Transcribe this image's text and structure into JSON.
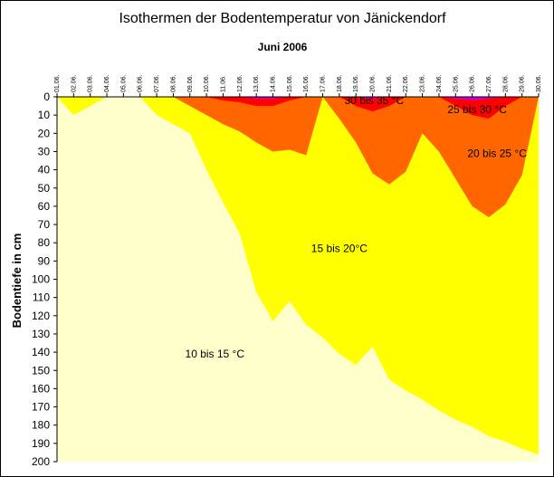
{
  "chart_data": {
    "type": "area",
    "title": "Isothermen der Bodentemperatur von Jänickendorf",
    "subtitle": "Juni 2006",
    "ylabel": "Bodentiefe in cm",
    "xlabel": "",
    "ylim": [
      0,
      200
    ],
    "y_inverted": true,
    "y_ticks": [
      0,
      10,
      20,
      30,
      40,
      50,
      60,
      70,
      80,
      90,
      100,
      110,
      120,
      130,
      140,
      150,
      160,
      170,
      180,
      190,
      200
    ],
    "x_labels": [
      "01.06.",
      "02.06.",
      "03.06.",
      "04.06.",
      "05.06.",
      "06.06.",
      "07.06.",
      "08.06.",
      "09.06.",
      "10.06.",
      "11.06.",
      "12.06.",
      "13.06.",
      "14.06.",
      "15.06.",
      "16.06.",
      "17.06.",
      "18.06.",
      "19.06.",
      "20.06.",
      "21.06.",
      "22.06.",
      "23.06.",
      "24.06.",
      "25.06.",
      "26.06.",
      "27.06.",
      "28.06.",
      "29.06.",
      "30.06."
    ],
    "x_index": [
      1,
      2,
      3,
      4,
      5,
      6,
      7,
      8,
      9,
      10,
      11,
      12,
      13,
      14,
      15,
      16,
      17,
      18,
      19,
      20,
      21,
      22,
      23,
      24,
      25,
      26,
      27,
      28,
      29,
      30
    ],
    "colors": {
      "10_15": "#ffffcc",
      "15_20": "#ffff00",
      "20_25": "#ff6600",
      "25_30": "#ff0000",
      "30_35": "#cc00cc"
    },
    "boundaries": [
      {
        "name": "15°C isotherm",
        "depth": [
          0,
          10,
          5,
          0,
          0,
          0,
          10,
          15,
          20,
          40,
          58,
          75,
          107,
          123,
          112,
          125,
          132,
          141,
          147,
          137,
          155,
          161,
          166,
          172,
          177,
          181,
          186,
          189,
          193,
          196
        ]
      },
      {
        "name": "20°C isotherm",
        "depth": [
          0,
          0,
          0,
          0,
          0,
          0,
          0,
          0,
          5,
          10,
          15,
          19,
          25,
          30,
          29,
          32,
          0,
          12,
          25,
          42,
          48,
          41,
          20,
          30,
          45,
          60,
          66,
          59,
          43,
          0
        ]
      },
      {
        "name": "25°C isotherm",
        "depth": [
          0,
          0,
          0,
          0,
          0,
          0,
          0,
          0,
          0,
          0,
          2,
          3,
          5,
          5,
          2,
          0,
          0,
          0,
          5,
          8,
          5,
          0,
          0,
          0,
          5,
          10,
          12,
          5,
          0,
          0
        ]
      },
      {
        "name": "30°C isotherm",
        "depth": [
          0,
          0,
          0,
          0,
          0,
          0,
          0,
          0,
          0,
          0,
          0,
          0,
          1,
          1,
          0,
          0,
          0,
          0,
          0,
          1,
          0,
          0,
          0,
          0,
          1,
          2,
          1,
          0,
          0,
          0
        ]
      }
    ],
    "zone_labels": [
      {
        "label": "10 bis 15 °C",
        "x": 10.5,
        "depth": 143
      },
      {
        "label": "15 bis 20°C",
        "x": 18.0,
        "depth": 85
      },
      {
        "label": "20 bis 25 °C",
        "x": 27.5,
        "depth": 33
      },
      {
        "label": "25 bis 30 °C",
        "x": 26.3,
        "depth": 9
      },
      {
        "label": "30 bis 35 °C",
        "x": 20.1,
        "depth": 4
      }
    ]
  }
}
